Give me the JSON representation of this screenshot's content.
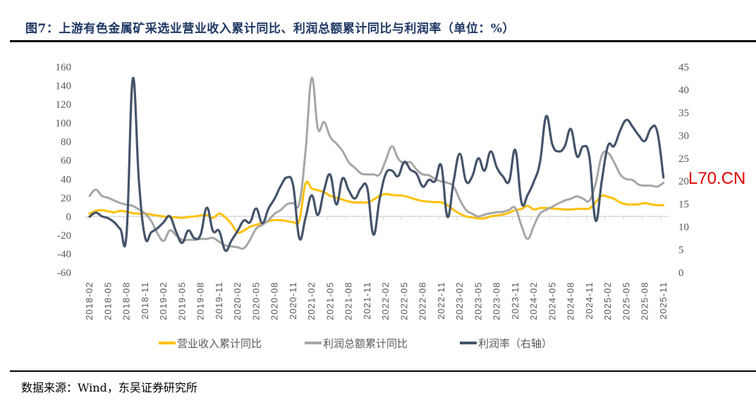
{
  "title": "图7：上游有色金属矿采选业营业收入累计同比、利润总额累计同比与利润率（单位：%）",
  "source": "数据来源：Wind，东吴证券研究所",
  "watermark": "L70.CN",
  "chart_data": {
    "type": "line",
    "title": "图7：上游有色金属矿采选业营业收入累计同比、利润总额累计同比与利润率（单位：%）",
    "x_start": "2018-02",
    "x_end": "2025-11",
    "x_frequency": "monthly",
    "x_tick_labels": [
      "2018-02",
      "2018-05",
      "2018-08",
      "2018-11",
      "2019-02",
      "2019-05",
      "2019-08",
      "2019-11",
      "2020-02",
      "2020-05",
      "2020-08",
      "2020-11",
      "2021-02",
      "2021-05",
      "2021-08",
      "2021-11",
      "2022-02",
      "2022-05",
      "2022-08",
      "2022-11",
      "2023-02",
      "2023-05",
      "2023-08",
      "2023-11",
      "2024-02",
      "2024-05",
      "2024-08",
      "2024-11",
      "2025-02",
      "2025-05",
      "2025-08",
      "2025-11"
    ],
    "y_left": {
      "ylim": [
        -60,
        160
      ],
      "ticks": [
        -60,
        -40,
        -20,
        0,
        20,
        40,
        60,
        80,
        100,
        120,
        140,
        160
      ]
    },
    "y_right": {
      "ylim": [
        0,
        45
      ],
      "ticks": [
        0,
        5,
        10,
        15,
        20,
        25,
        30,
        35,
        40,
        45
      ]
    },
    "grid": false,
    "legend_position": "bottom",
    "series": [
      {
        "name": "营业收入累计同比",
        "axis": "left",
        "color": "#FFC000",
        "values": [
          3,
          6,
          6.8,
          5.5,
          4.5,
          6,
          5,
          3.5,
          3,
          3,
          2,
          1,
          0,
          -0.5,
          -1,
          -1.5,
          -0.5,
          0,
          1,
          1.5,
          -1.5,
          3,
          -1,
          -8,
          -17,
          -15,
          -11,
          -9,
          -7,
          -5,
          -4,
          -4,
          -5,
          -6,
          -4,
          35,
          30,
          28,
          26,
          22,
          20,
          18,
          16,
          15,
          15,
          15,
          18,
          22,
          24,
          23,
          22.5,
          22,
          20,
          18,
          16.5,
          15.8,
          15.3,
          15,
          12,
          7,
          3,
          0,
          -1,
          -2,
          -2,
          0,
          1,
          2,
          4,
          6.8,
          8,
          11.3,
          7.5,
          9,
          9,
          8.5,
          8,
          7.5,
          7.5,
          8,
          8.3,
          8.5,
          15,
          22,
          21,
          18.8,
          15,
          13,
          12.8,
          13,
          14.3,
          13,
          12,
          12
        ]
      },
      {
        "name": "利润总额累计同比",
        "axis": "left",
        "color": "#A6A6A6",
        "values": [
          22,
          28.6,
          22,
          20,
          17,
          14.3,
          12.5,
          11.3,
          7.5,
          3,
          -5,
          -18,
          -26,
          -15,
          -20,
          -25,
          -25,
          -25,
          -24,
          -24,
          -23,
          -27,
          -31,
          -32,
          -33,
          -34,
          -25,
          -13,
          -9,
          -4,
          3,
          7,
          13,
          14.3,
          14.3,
          70,
          148,
          94,
          101,
          85,
          78,
          70,
          58,
          52,
          46,
          45,
          45,
          45,
          60,
          75,
          62,
          57,
          58,
          50,
          45,
          44,
          40,
          37.5,
          36,
          32,
          18,
          7,
          3,
          0,
          2,
          3.5,
          4.5,
          5,
          7,
          9,
          -10,
          -24,
          -10,
          3,
          7,
          10.5,
          14,
          17,
          19,
          21.5,
          19,
          17,
          35,
          65,
          68,
          58,
          45,
          40,
          39,
          34,
          33,
          33,
          32,
          36
        ]
      },
      {
        "name": "利润率（右轴）",
        "axis": "right",
        "color": "#44546A",
        "values": [
          12.2,
          13.1,
          12.3,
          11.9,
          11.0,
          9.5,
          8.5,
          42.4,
          20,
          7.7,
          8.8,
          9.7,
          11,
          12.3,
          9,
          6.5,
          9.2,
          7.5,
          8.3,
          14.2,
          9.1,
          9.1,
          4.8,
          7,
          9.1,
          11.4,
          11,
          14,
          10.8,
          14,
          16.2,
          19,
          20.8,
          19,
          7.5,
          12,
          16.9,
          12.6,
          18,
          21.4,
          14.9,
          20.6,
          18,
          16.2,
          18.5,
          18.5,
          8.3,
          16,
          21.6,
          22.3,
          21.1,
          24.2,
          22.5,
          21.6,
          18.8,
          20.3,
          20.0,
          23.4,
          12.2,
          20,
          26,
          20,
          21,
          25,
          22.3,
          26.5,
          23,
          21,
          20,
          26.8,
          15.3,
          17,
          19.9,
          24.2,
          34.2,
          28,
          26.5,
          27.6,
          31.4,
          25.4,
          27.6,
          25.3,
          11.4,
          20,
          27.7,
          27.7,
          31.1,
          33.4,
          31.9,
          30,
          28.8,
          31.6,
          30.8,
          20.8
        ]
      }
    ]
  }
}
